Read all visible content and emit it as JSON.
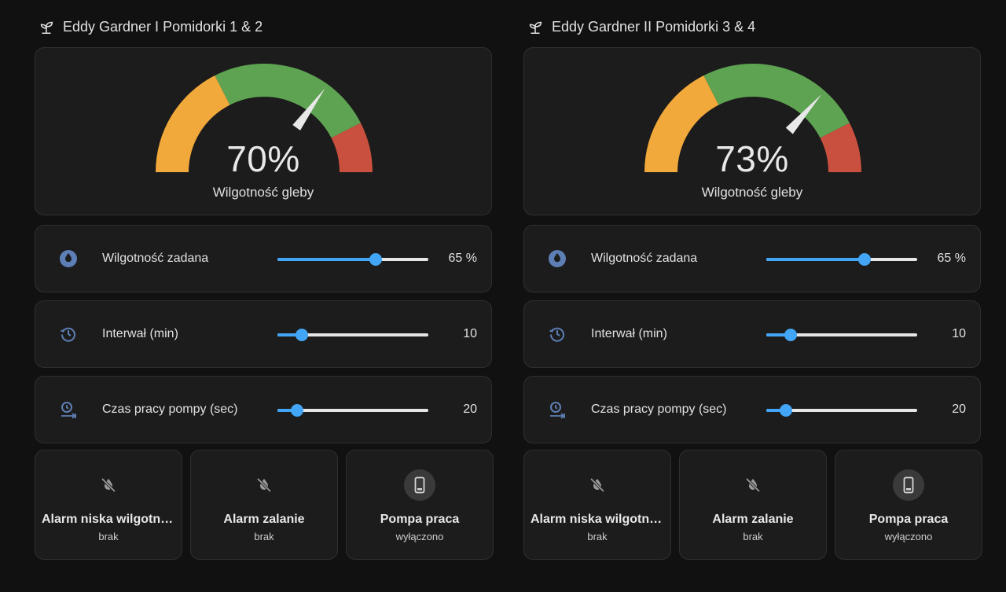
{
  "colors": {
    "accent": "#42a5f5",
    "icon": "#5d7fb5",
    "gauge_yellow": "#f2a93b",
    "gauge_green": "#5ea351",
    "gauge_red": "#c9503e"
  },
  "columns": [
    {
      "title": "Eddy Gardner I Pomidorki 1 & 2",
      "title_icon": "sprout-icon",
      "gauge": {
        "value": 70,
        "display": "70%",
        "label": "Wilgotność gleby",
        "min": 0,
        "max": 100,
        "segments": [
          {
            "from": 0,
            "to": 35,
            "color": "yellow"
          },
          {
            "from": 35,
            "to": 85,
            "color": "green"
          },
          {
            "from": 85,
            "to": 100,
            "color": "red"
          }
        ]
      },
      "sliders": [
        {
          "label": "Wilgotność zadana",
          "value_text": "65 %",
          "fraction": 0.65,
          "icon": "water-drop-icon"
        },
        {
          "label": "Interwał (min)",
          "value_text": "10",
          "fraction": 0.16,
          "icon": "restore-clock-icon"
        },
        {
          "label": "Czas pracy pompy (sec)",
          "value_text": "20",
          "fraction": 0.13,
          "icon": "timer-arrow-icon"
        }
      ],
      "tiles": [
        {
          "name": "Alarm niska wilgotność",
          "state": "brak",
          "icon": "water-off-icon"
        },
        {
          "name": "Alarm zalanie",
          "state": "brak",
          "icon": "water-off-icon"
        },
        {
          "name": "Pompa praca",
          "state": "wyłączono",
          "icon": "cellphone-icon"
        }
      ]
    },
    {
      "title": "Eddy Gardner II Pomidorki 3 & 4",
      "title_icon": "sprout-icon",
      "gauge": {
        "value": 73,
        "display": "73%",
        "label": "Wilgotność gleby",
        "min": 0,
        "max": 100,
        "segments": [
          {
            "from": 0,
            "to": 35,
            "color": "yellow"
          },
          {
            "from": 35,
            "to": 85,
            "color": "green"
          },
          {
            "from": 85,
            "to": 100,
            "color": "red"
          }
        ]
      },
      "sliders": [
        {
          "label": "Wilgotność zadana",
          "value_text": "65 %",
          "fraction": 0.65,
          "icon": "water-drop-icon"
        },
        {
          "label": "Interwał (min)",
          "value_text": "10",
          "fraction": 0.16,
          "icon": "restore-clock-icon"
        },
        {
          "label": "Czas pracy pompy (sec)",
          "value_text": "20",
          "fraction": 0.13,
          "icon": "timer-arrow-icon"
        }
      ],
      "tiles": [
        {
          "name": "Alarm niska wilgotność",
          "state": "brak",
          "icon": "water-off-icon"
        },
        {
          "name": "Alarm zalanie",
          "state": "brak",
          "icon": "water-off-icon"
        },
        {
          "name": "Pompa praca",
          "state": "wyłączono",
          "icon": "cellphone-icon"
        }
      ]
    }
  ]
}
